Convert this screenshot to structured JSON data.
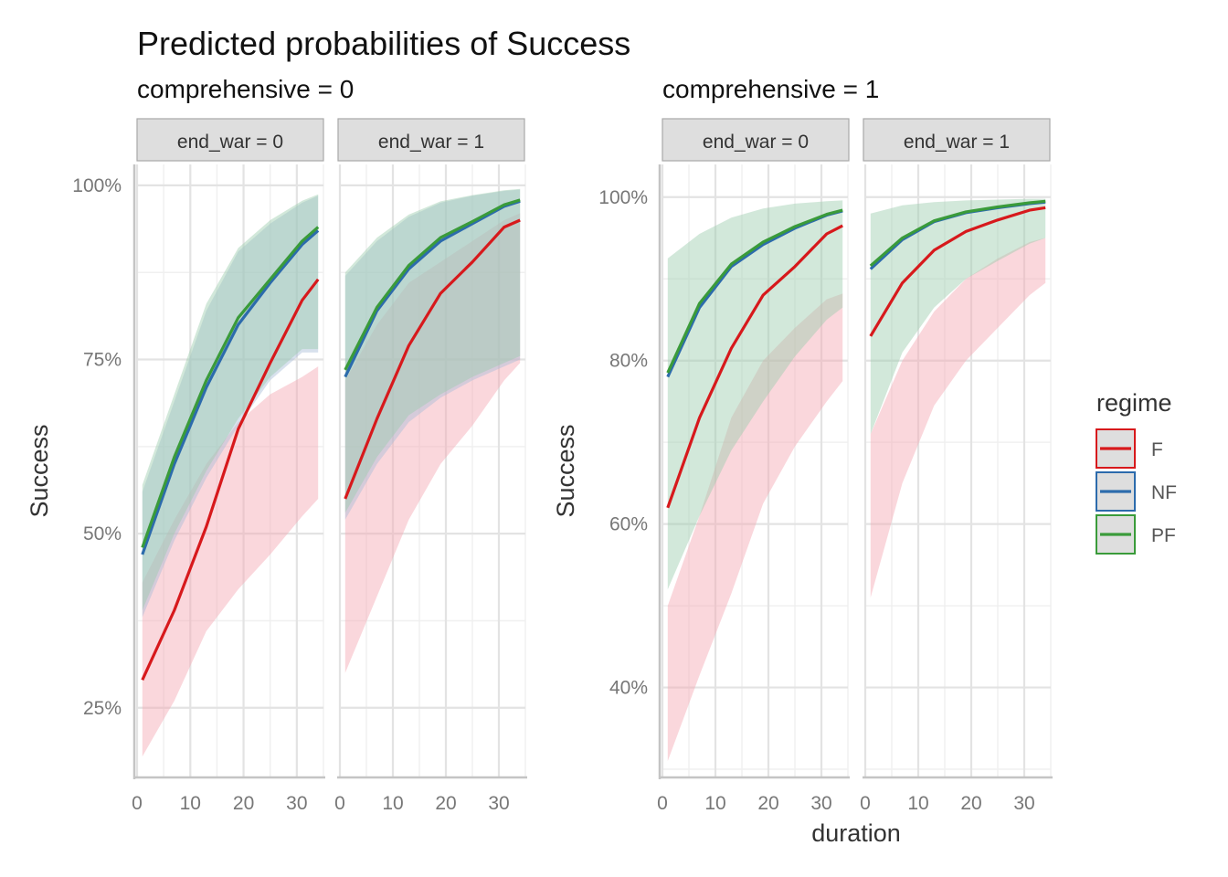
{
  "chart_data": {
    "type": "line",
    "title": "Predicted probabilities of Success",
    "xlabel": "duration",
    "ylabel": "Success",
    "facet_row_label": "end_war",
    "legend": {
      "title": "regime",
      "position": "right",
      "entries": [
        {
          "name": "F",
          "color": "#D7191C"
        },
        {
          "name": "NF",
          "color": "#2C6BAC"
        },
        {
          "name": "PF",
          "color": "#3A9B3A"
        }
      ]
    },
    "band_colors": {
      "F": "#F4A6B2",
      "NF": "#A9BCD8",
      "PF": "#9CCCAE"
    },
    "x_ticks": [
      0,
      10,
      20,
      30
    ],
    "xlim": [
      0,
      35
    ],
    "x": [
      1,
      7,
      13,
      19,
      25,
      31,
      34
    ],
    "panels": [
      {
        "subtitle": "comprehensive = 0",
        "ylim": [
          0.15,
          1.03
        ],
        "y_ticks": [
          0.25,
          0.5,
          0.75,
          1.0
        ],
        "y_tick_labels": [
          "25%",
          "50%",
          "75%",
          "100%"
        ],
        "facets": [
          {
            "strip": "end_war = 0",
            "series": [
              {
                "name": "F",
                "values": [
                  0.29,
                  0.39,
                  0.51,
                  0.65,
                  0.745,
                  0.835,
                  0.865
                ],
                "lower": [
                  0.18,
                  0.26,
                  0.36,
                  0.42,
                  0.47,
                  0.525,
                  0.55
                ],
                "upper": [
                  0.43,
                  0.52,
                  0.6,
                  0.66,
                  0.7,
                  0.725,
                  0.74
                ]
              },
              {
                "name": "NF",
                "values": [
                  0.47,
                  0.6,
                  0.71,
                  0.8,
                  0.86,
                  0.915,
                  0.935
                ],
                "lower": [
                  0.38,
                  0.49,
                  0.58,
                  0.655,
                  0.72,
                  0.76,
                  0.76
                ],
                "upper": [
                  0.56,
                  0.69,
                  0.82,
                  0.905,
                  0.945,
                  0.975,
                  0.985
                ]
              },
              {
                "name": "PF",
                "values": [
                  0.48,
                  0.61,
                  0.72,
                  0.81,
                  0.865,
                  0.92,
                  0.94
                ],
                "lower": [
                  0.39,
                  0.5,
                  0.59,
                  0.665,
                  0.725,
                  0.765,
                  0.765
                ],
                "upper": [
                  0.57,
                  0.7,
                  0.83,
                  0.91,
                  0.95,
                  0.978,
                  0.987
                ]
              }
            ]
          },
          {
            "strip": "end_war = 1",
            "series": [
              {
                "name": "F",
                "values": [
                  0.55,
                  0.665,
                  0.77,
                  0.845,
                  0.89,
                  0.94,
                  0.95
                ],
                "lower": [
                  0.3,
                  0.41,
                  0.52,
                  0.6,
                  0.655,
                  0.72,
                  0.745
                ],
                "upper": [
                  0.72,
                  0.8,
                  0.86,
                  0.89,
                  0.92,
                  0.95,
                  0.96
                ]
              },
              {
                "name": "NF",
                "values": [
                  0.725,
                  0.82,
                  0.88,
                  0.92,
                  0.945,
                  0.97,
                  0.977
                ],
                "lower": [
                  0.52,
                  0.6,
                  0.66,
                  0.695,
                  0.72,
                  0.74,
                  0.75
                ],
                "upper": [
                  0.87,
                  0.92,
                  0.955,
                  0.975,
                  0.985,
                  0.992,
                  0.994
                ]
              },
              {
                "name": "PF",
                "values": [
                  0.735,
                  0.825,
                  0.885,
                  0.925,
                  0.948,
                  0.972,
                  0.979
                ],
                "lower": [
                  0.53,
                  0.61,
                  0.67,
                  0.7,
                  0.725,
                  0.745,
                  0.755
                ],
                "upper": [
                  0.875,
                  0.925,
                  0.958,
                  0.977,
                  0.986,
                  0.993,
                  0.995
                ]
              }
            ]
          }
        ]
      },
      {
        "subtitle": "comprehensive = 1",
        "ylim": [
          0.29,
          1.04
        ],
        "y_ticks": [
          0.4,
          0.6,
          0.8,
          1.0
        ],
        "y_tick_labels": [
          "40%",
          "60%",
          "80%",
          "100%"
        ],
        "facets": [
          {
            "strip": "end_war = 0",
            "series": [
              {
                "name": "F",
                "values": [
                  0.62,
                  0.73,
                  0.815,
                  0.88,
                  0.915,
                  0.955,
                  0.965
                ],
                "lower": [
                  0.31,
                  0.415,
                  0.515,
                  0.625,
                  0.695,
                  0.75,
                  0.775
                ],
                "upper": [
                  0.5,
                  0.61,
                  0.73,
                  0.8,
                  0.84,
                  0.875,
                  0.882
                ]
              },
              {
                "name": "NF",
                "values": [
                  0.78,
                  0.865,
                  0.915,
                  0.942,
                  0.962,
                  0.978,
                  0.983
                ],
                "lower": [
                  0.515,
                  0.605,
                  0.685,
                  0.745,
                  0.8,
                  0.845,
                  0.862
                ]
              },
              {
                "name": "PF",
                "values": [
                  0.785,
                  0.87,
                  0.918,
                  0.945,
                  0.964,
                  0.979,
                  0.984
                ],
                "lower": [
                  0.52,
                  0.61,
                  0.69,
                  0.75,
                  0.805,
                  0.85,
                  0.865
                ],
                "upper": [
                  0.925,
                  0.955,
                  0.975,
                  0.986,
                  0.992,
                  0.995,
                  0.996
                ]
              }
            ]
          },
          {
            "strip": "end_war = 1",
            "series": [
              {
                "name": "F",
                "values": [
                  0.83,
                  0.895,
                  0.935,
                  0.958,
                  0.972,
                  0.984,
                  0.987
                ],
                "lower": [
                  0.51,
                  0.65,
                  0.745,
                  0.8,
                  0.84,
                  0.88,
                  0.895
                ],
                "upper": [
                  0.71,
                  0.8,
                  0.86,
                  0.9,
                  0.925,
                  0.945,
                  0.95
                ]
              },
              {
                "name": "NF",
                "values": [
                  0.912,
                  0.948,
                  0.97,
                  0.981,
                  0.987,
                  0.992,
                  0.994
                ],
                "lower": [
                  0.7,
                  0.8,
                  0.86,
                  0.895,
                  0.918,
                  0.94,
                  0.948
                ]
              },
              {
                "name": "PF",
                "values": [
                  0.916,
                  0.95,
                  0.971,
                  0.982,
                  0.988,
                  0.993,
                  0.995
                ],
                "lower": [
                  0.71,
                  0.81,
                  0.865,
                  0.9,
                  0.922,
                  0.943,
                  0.95
                ],
                "upper": [
                  0.98,
                  0.99,
                  0.994,
                  0.996,
                  0.997,
                  0.998,
                  0.998
                ]
              }
            ]
          }
        ]
      }
    ]
  }
}
